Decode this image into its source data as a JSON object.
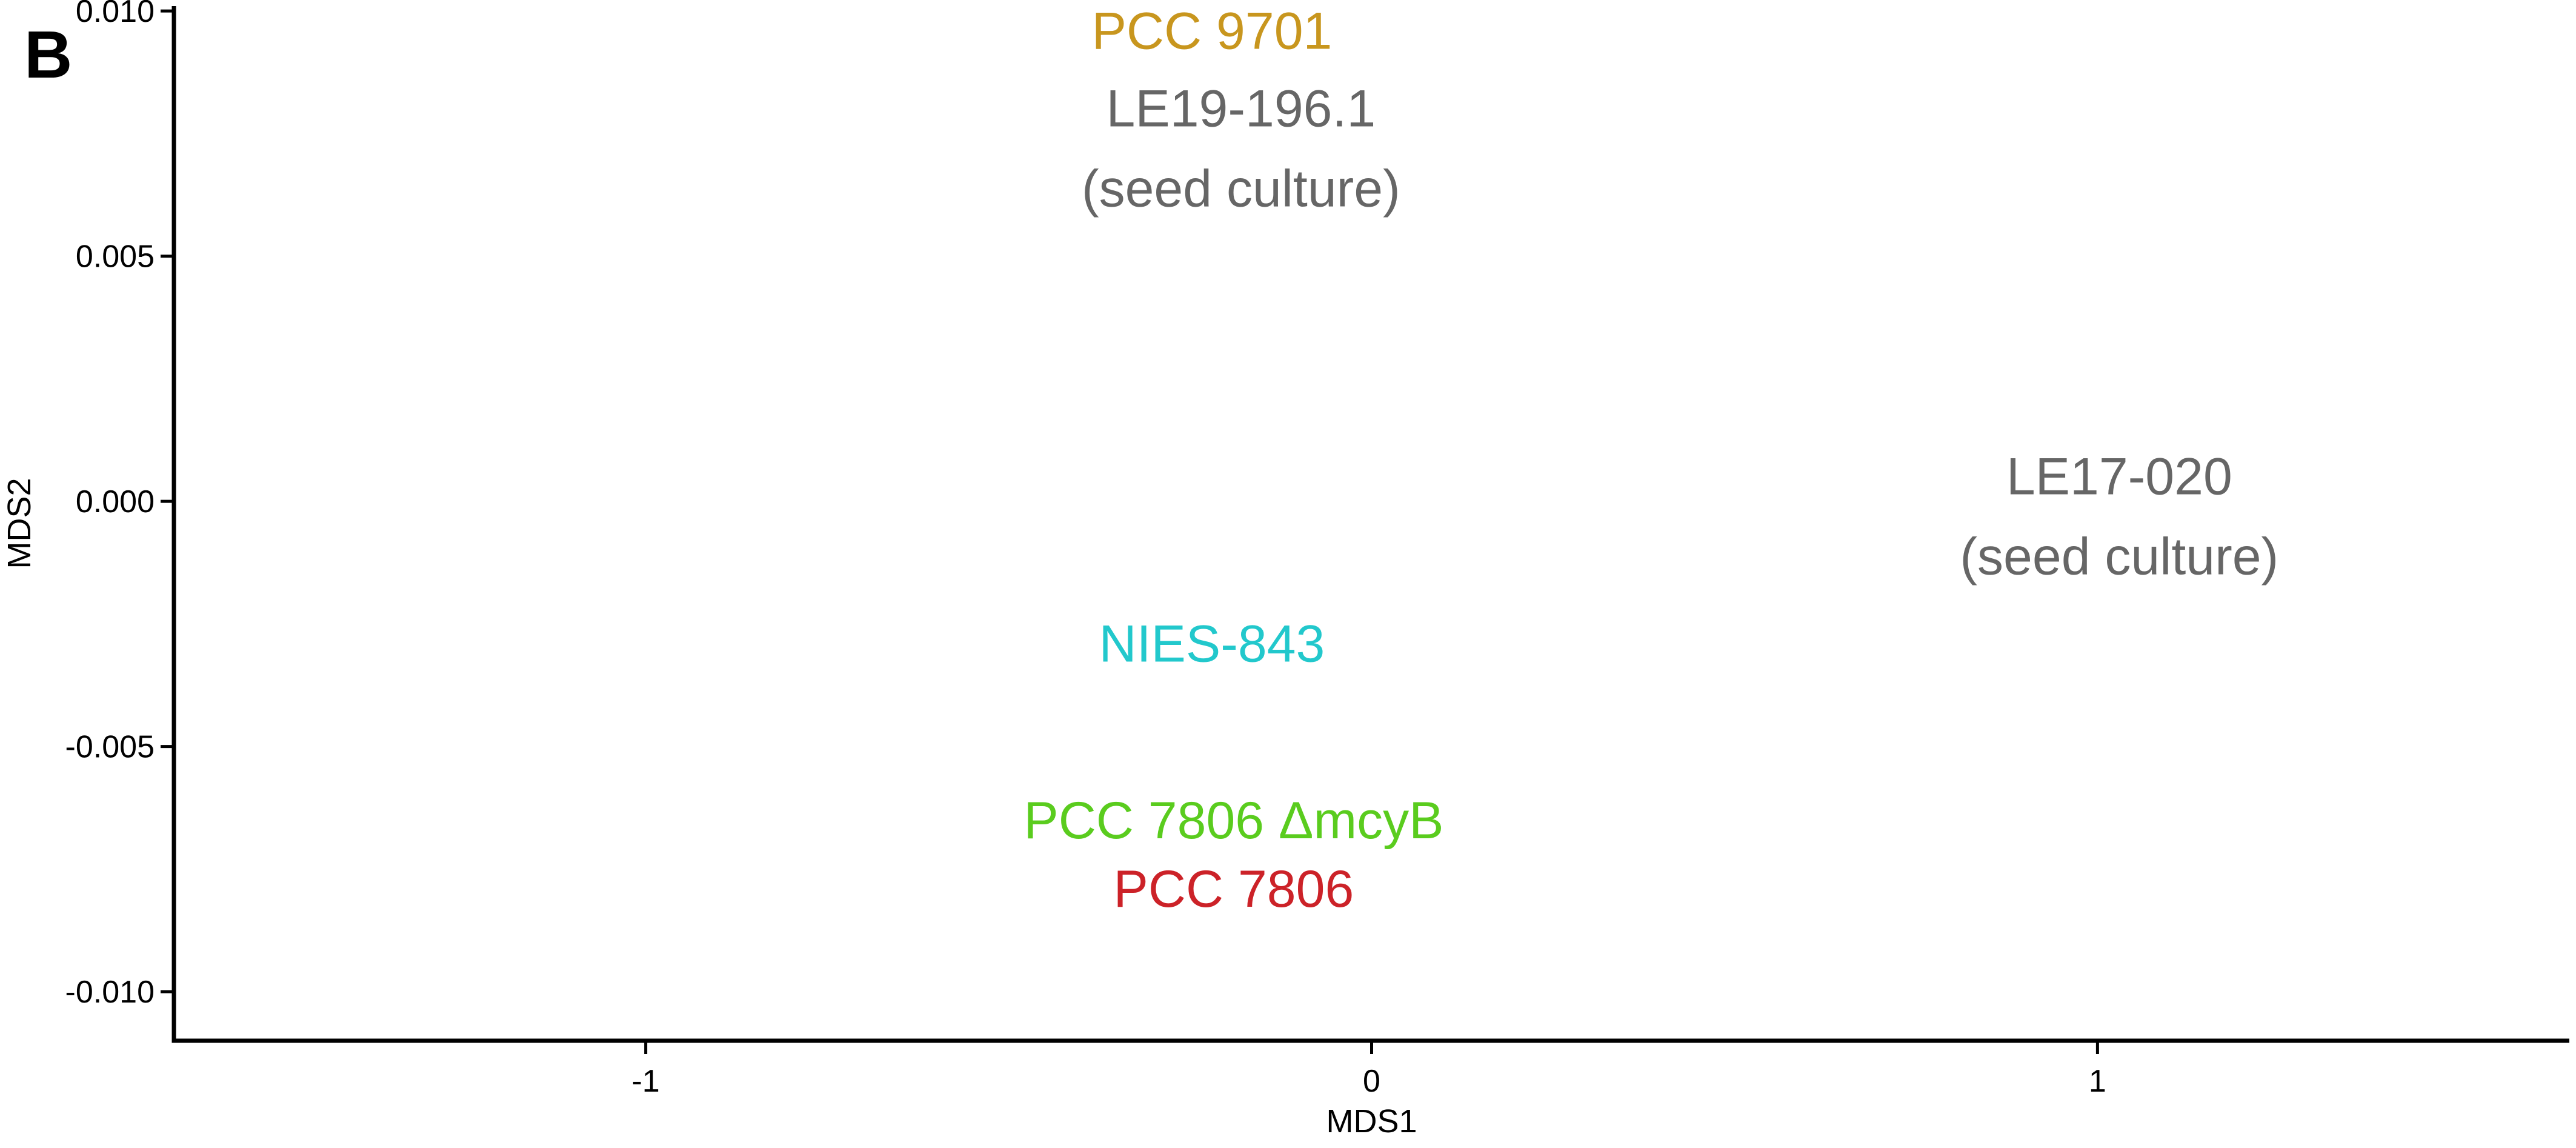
{
  "chart_data": {
    "type": "scatter",
    "panel_label": "B",
    "xlabel": "MDS1",
    "ylabel": "MDS2",
    "xlim": [
      -1.65,
      1.65
    ],
    "ylim": [
      -0.011,
      0.0101
    ],
    "xticks": [
      {
        "value": -1,
        "label": "-1"
      },
      {
        "value": 0,
        "label": "0"
      },
      {
        "value": 1,
        "label": "1"
      }
    ],
    "yticks": [
      {
        "value": -0.01,
        "label": "-0.010"
      },
      {
        "value": -0.005,
        "label": "-0.005"
      },
      {
        "value": 0.0,
        "label": "0.000"
      },
      {
        "value": 0.005,
        "label": "0.005"
      },
      {
        "value": 0.01,
        "label": "0.010"
      }
    ],
    "grid": false,
    "legend": "none",
    "points": [
      {
        "name": "PCC 9701",
        "lines": [
          "PCC 9701"
        ],
        "x": -0.22,
        "y": 0.0096,
        "color": "#C8961E"
      },
      {
        "name": "LE19-196.1 (seed culture)",
        "lines": [
          "LE19-196.1",
          "(seed culture)"
        ],
        "x": -0.18,
        "y": 0.0072,
        "color": "#666666"
      },
      {
        "name": "LE17-020 (seed culture)",
        "lines": [
          "LE17-020",
          "(seed culture)"
        ],
        "x": 1.03,
        "y": -0.0003,
        "color": "#666666"
      },
      {
        "name": "NIES-843",
        "lines": [
          "NIES-843"
        ],
        "x": -0.22,
        "y": -0.0029,
        "color": "#22C8CC"
      },
      {
        "name": "PCC 7806 ΔmcyB",
        "lines": [
          "PCC 7806 ΔmcyB"
        ],
        "x": -0.19,
        "y": -0.0065,
        "color": "#5ACC1E"
      },
      {
        "name": "PCC 7806",
        "lines": [
          "PCC 7806"
        ],
        "x": -0.19,
        "y": -0.0079,
        "color": "#CC2228"
      }
    ]
  }
}
